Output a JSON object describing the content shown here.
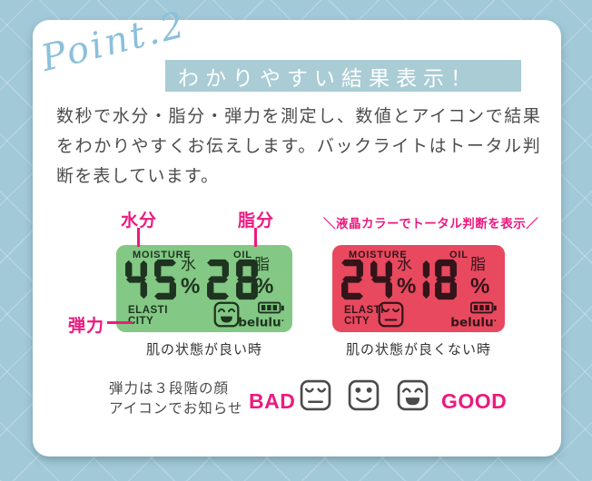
{
  "header": {
    "point_label": "Point.2",
    "title": "わかりやすい結果表示！"
  },
  "description": "数秒で水分・脂分・弾力を測定し、数値とアイコンで結果をわかりやすくお伝えします。バックライトはトータル判断を表しています。",
  "annotations": {
    "moisture": "水分",
    "oil": "脂分",
    "elasticity": "弾力",
    "lcd_note": "＼液晶カラーでトータル判断を表示／"
  },
  "displays": [
    {
      "backlight": "green",
      "moisture_label": "MOISTURE",
      "oil_label": "OIL",
      "moisture_value": "45",
      "moisture_unit": "水",
      "oil_value": "28",
      "oil_unit": "脂",
      "percent_sign": "%",
      "elasticity_line1": "ELASTI",
      "elasticity_line2": "CITY",
      "face": "happy",
      "brand": "belulu",
      "brand_mark": ".",
      "caption": "肌の状態が良い時"
    },
    {
      "backlight": "red",
      "moisture_label": "MOISTURE",
      "oil_label": "OIL",
      "moisture_value": "24",
      "moisture_unit": "水",
      "oil_value": "18",
      "oil_unit": "脂",
      "percent_sign": "%",
      "elasticity_line1": "ELASTI",
      "elasticity_line2": "CITY",
      "face": "sad",
      "brand": "belulu",
      "brand_mark": ".",
      "caption": "肌の状態が良くない時"
    }
  ],
  "legend": {
    "note_line1": "弾力は３段階の顔",
    "note_line2": "アイコンでお知らせ",
    "bad_label": "BAD",
    "good_label": "GOOD",
    "faces": [
      "sad",
      "neutral",
      "happy"
    ]
  },
  "colors": {
    "accent_pink": "#ec1a7f",
    "banner_blue": "#a9ccd5",
    "script_blue": "#8cc0dc",
    "background_blue": "#a1c9d8",
    "lcd_good_green": "#83c884",
    "lcd_bad_red": "#e8495f"
  }
}
